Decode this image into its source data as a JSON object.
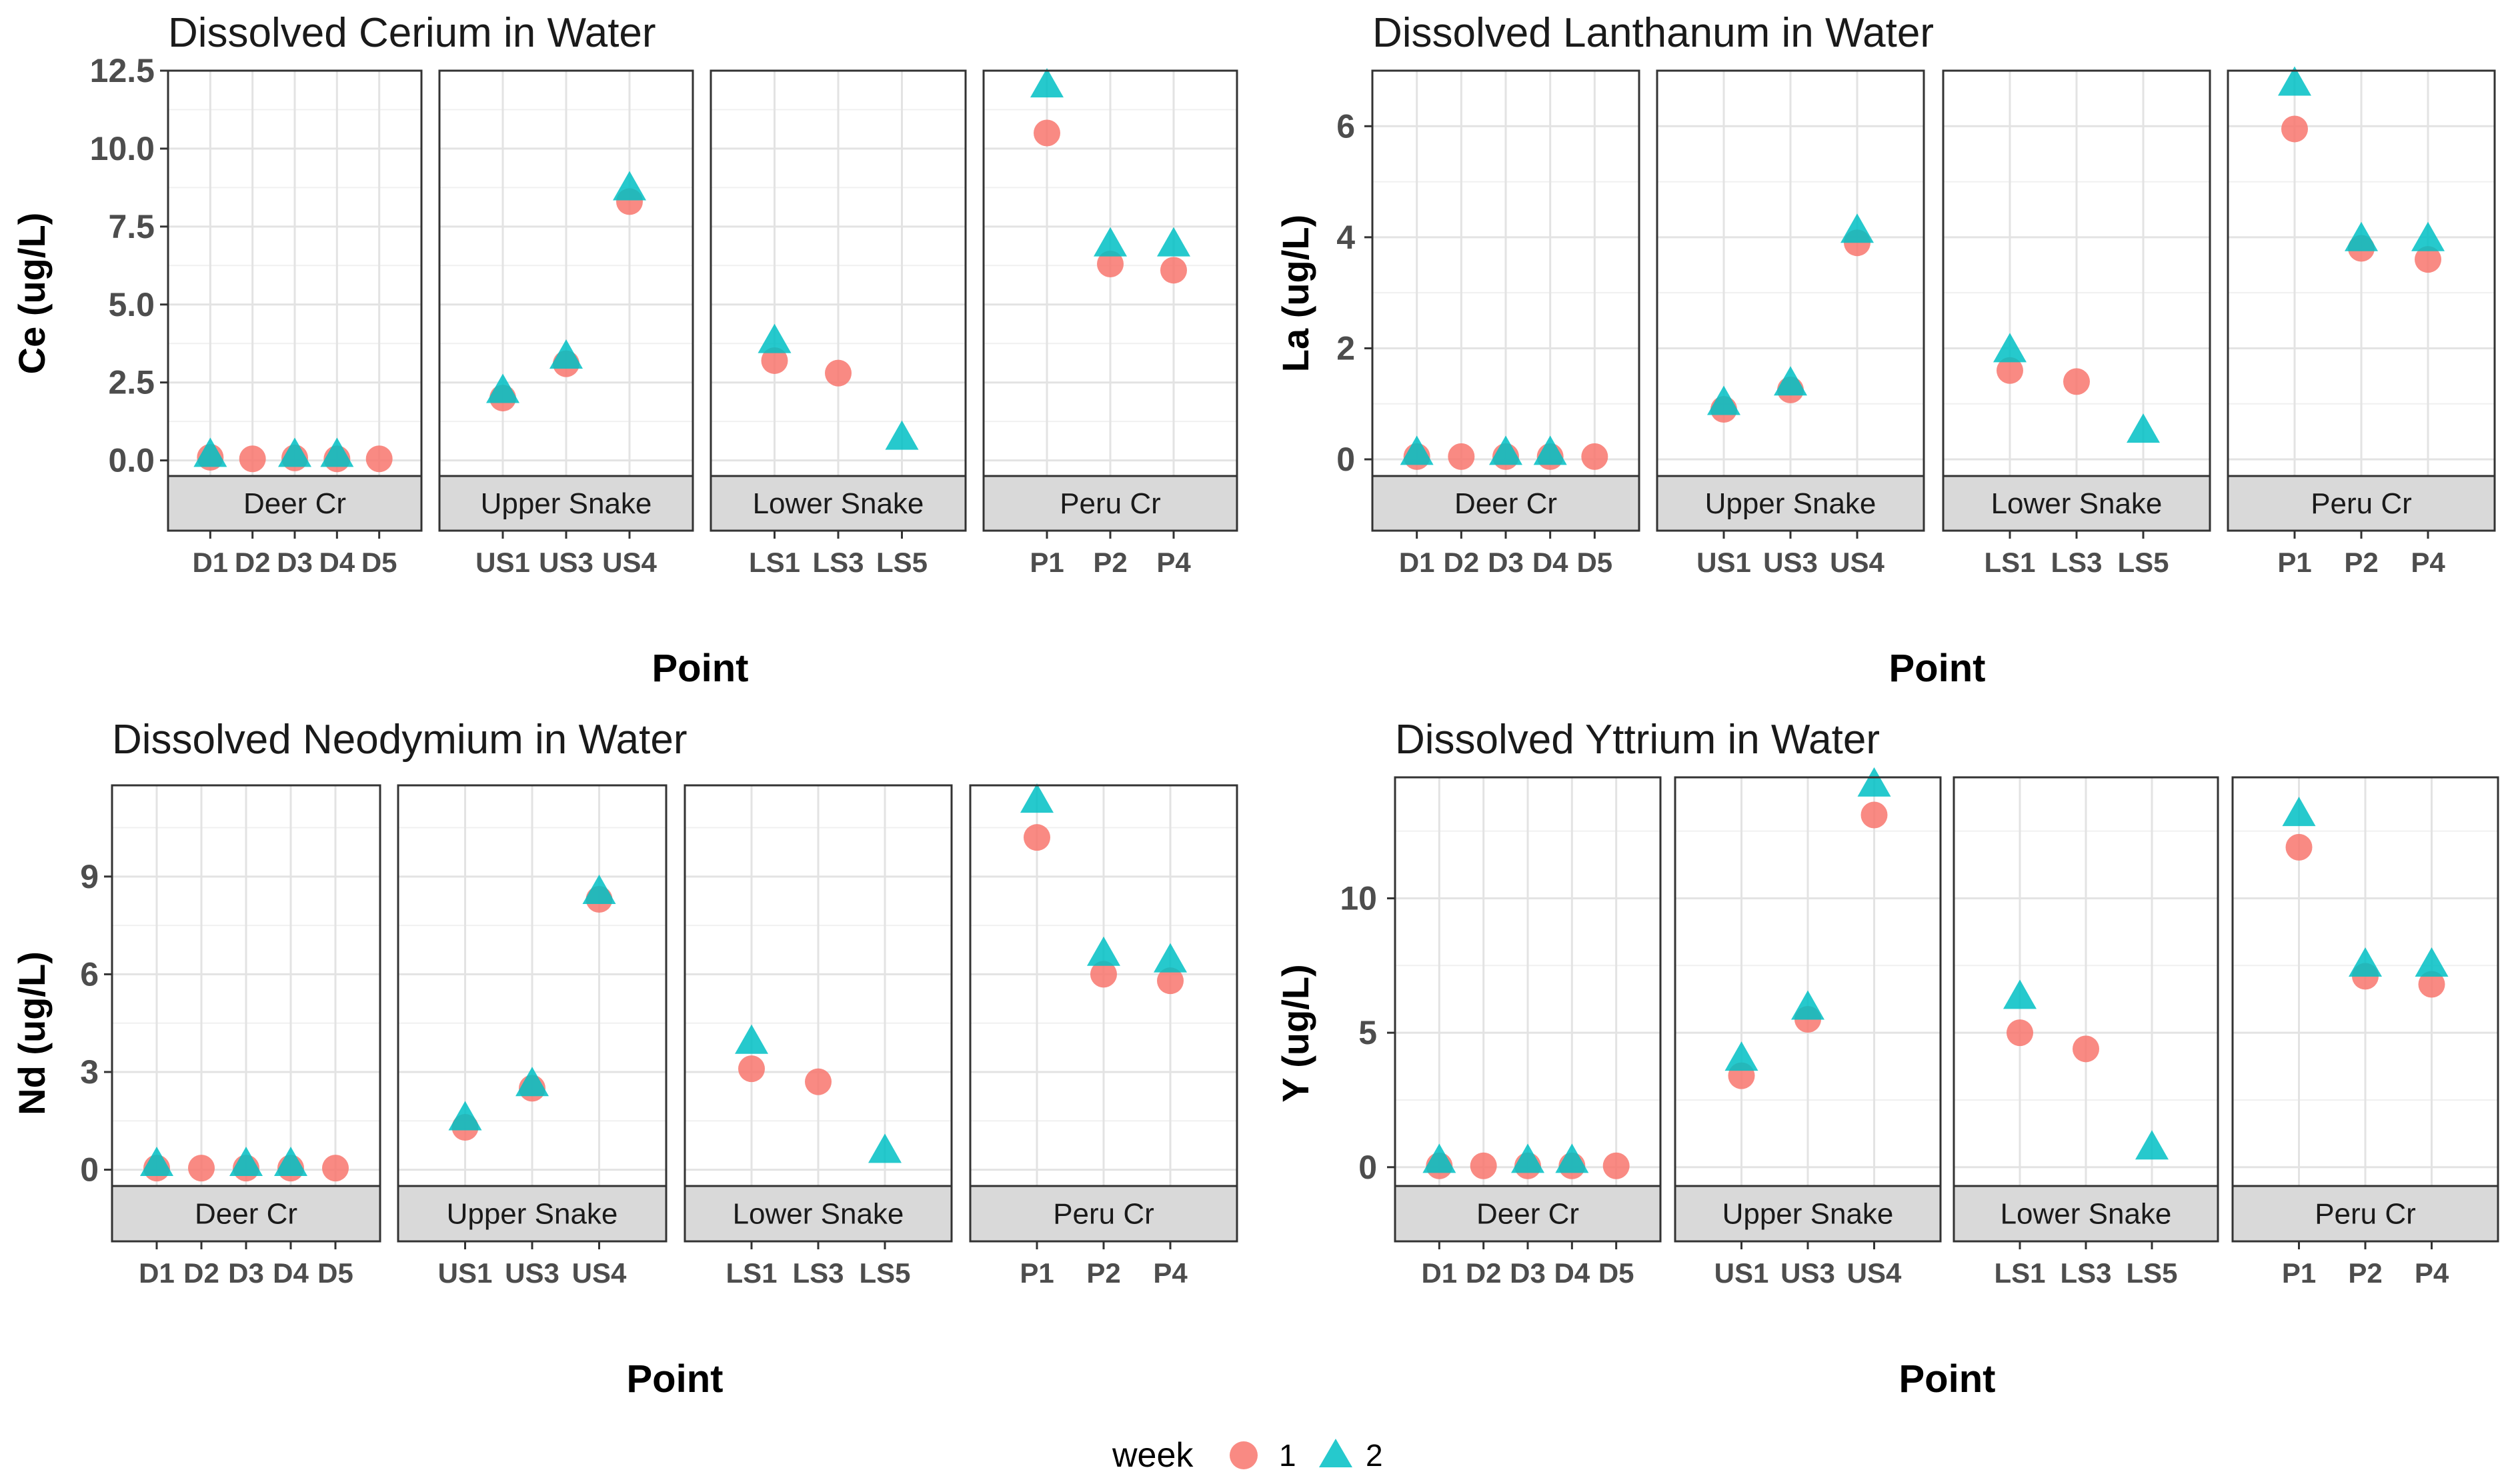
{
  "legend": {
    "title": "week",
    "entries": [
      {
        "label": "1",
        "color": "#F8766D",
        "shape": "circle"
      },
      {
        "label": "2",
        "color": "#00BFC4",
        "shape": "triangle"
      }
    ]
  },
  "chart_data": [
    {
      "type": "scatter",
      "title": "Dissolved Cerium in Water",
      "xlabel": "Point",
      "ylabel": "Ce (ug/L)",
      "ylim": [
        -0.5,
        12.5
      ],
      "yticks": [
        0.0,
        2.5,
        5.0,
        7.5,
        10.0,
        12.5
      ],
      "ytick_labels": [
        "0.0",
        "2.5",
        "5.0",
        "7.5",
        "10.0",
        "12.5"
      ],
      "facets": [
        {
          "name": "Deer Cr",
          "points": [
            "D1",
            "D2",
            "D3",
            "D4",
            "D5"
          ],
          "series": [
            {
              "name": "1",
              "values": [
                0.1,
                0.05,
                0.08,
                0.05,
                0.05
              ]
            },
            {
              "name": "2",
              "values": [
                0.15,
                null,
                0.15,
                0.15,
                null
              ]
            }
          ]
        },
        {
          "name": "Upper Snake",
          "points": [
            "US1",
            "US3",
            "US4"
          ],
          "series": [
            {
              "name": "1",
              "values": [
                2.0,
                3.1,
                8.3
              ]
            },
            {
              "name": "2",
              "values": [
                2.2,
                3.3,
                8.7
              ]
            }
          ]
        },
        {
          "name": "Lower Snake",
          "points": [
            "LS1",
            "LS3",
            "LS5"
          ],
          "series": [
            {
              "name": "1",
              "values": [
                3.2,
                2.8,
                null
              ]
            },
            {
              "name": "2",
              "values": [
                3.8,
                null,
                0.7
              ]
            }
          ]
        },
        {
          "name": "Peru Cr",
          "points": [
            "P1",
            "P2",
            "P4"
          ],
          "series": [
            {
              "name": "1",
              "values": [
                10.5,
                6.3,
                6.1
              ]
            },
            {
              "name": "2",
              "values": [
                12.0,
                6.9,
                6.9
              ]
            }
          ]
        }
      ]
    },
    {
      "type": "scatter",
      "title": "Dissolved Lanthanum in Water",
      "xlabel": "Point",
      "ylabel": "La (ug/L)",
      "ylim": [
        -0.3,
        7.0
      ],
      "yticks": [
        0,
        2,
        4,
        6
      ],
      "ytick_labels": [
        "0",
        "2",
        "4",
        "6"
      ],
      "facets": [
        {
          "name": "Deer Cr",
          "points": [
            "D1",
            "D2",
            "D3",
            "D4",
            "D5"
          ],
          "series": [
            {
              "name": "1",
              "values": [
                0.05,
                0.05,
                0.05,
                0.05,
                0.05
              ]
            },
            {
              "name": "2",
              "values": [
                0.1,
                null,
                0.1,
                0.1,
                null
              ]
            }
          ]
        },
        {
          "name": "Upper Snake",
          "points": [
            "US1",
            "US3",
            "US4"
          ],
          "series": [
            {
              "name": "1",
              "values": [
                0.9,
                1.25,
                3.9
              ]
            },
            {
              "name": "2",
              "values": [
                1.0,
                1.35,
                4.1
              ]
            }
          ]
        },
        {
          "name": "Lower Snake",
          "points": [
            "LS1",
            "LS3",
            "LS5"
          ],
          "series": [
            {
              "name": "1",
              "values": [
                1.6,
                1.4,
                null
              ]
            },
            {
              "name": "2",
              "values": [
                1.95,
                null,
                0.5
              ]
            }
          ]
        },
        {
          "name": "Peru Cr",
          "points": [
            "P1",
            "P2",
            "P4"
          ],
          "series": [
            {
              "name": "1",
              "values": [
                5.95,
                3.8,
                3.6
              ]
            },
            {
              "name": "2",
              "values": [
                6.75,
                3.95,
                3.95
              ]
            }
          ]
        }
      ]
    },
    {
      "type": "scatter",
      "title": "Dissolved Neodymium in Water",
      "xlabel": "Point",
      "ylabel": "Nd (ug/L)",
      "ylim": [
        -0.5,
        11.8
      ],
      "yticks": [
        0,
        3,
        6,
        9
      ],
      "ytick_labels": [
        "0",
        "3",
        "6",
        "9"
      ],
      "facets": [
        {
          "name": "Deer Cr",
          "points": [
            "D1",
            "D2",
            "D3",
            "D4",
            "D5"
          ],
          "series": [
            {
              "name": "1",
              "values": [
                0.05,
                0.05,
                0.05,
                0.05,
                0.05
              ]
            },
            {
              "name": "2",
              "values": [
                0.15,
                null,
                0.15,
                0.15,
                null
              ]
            }
          ]
        },
        {
          "name": "Upper Snake",
          "points": [
            "US1",
            "US3",
            "US4"
          ],
          "series": [
            {
              "name": "1",
              "values": [
                1.3,
                2.5,
                8.3
              ]
            },
            {
              "name": "2",
              "values": [
                1.55,
                2.6,
                8.5
              ]
            }
          ]
        },
        {
          "name": "Lower Snake",
          "points": [
            "LS1",
            "LS3",
            "LS5"
          ],
          "series": [
            {
              "name": "1",
              "values": [
                3.1,
                2.7,
                null
              ]
            },
            {
              "name": "2",
              "values": [
                3.9,
                null,
                0.55
              ]
            }
          ]
        },
        {
          "name": "Peru Cr",
          "points": [
            "P1",
            "P2",
            "P4"
          ],
          "series": [
            {
              "name": "1",
              "values": [
                10.2,
                6.0,
                5.8
              ]
            },
            {
              "name": "2",
              "values": [
                11.3,
                6.6,
                6.4
              ]
            }
          ]
        }
      ]
    },
    {
      "type": "scatter",
      "title": "Dissolved Yttrium in Water",
      "xlabel": "Point",
      "ylabel": "Y (ug/L)",
      "ylim": [
        -0.7,
        14.5
      ],
      "yticks": [
        0,
        5,
        10
      ],
      "ytick_labels": [
        "0",
        "5",
        "10"
      ],
      "facets": [
        {
          "name": "Deer Cr",
          "points": [
            "D1",
            "D2",
            "D3",
            "D4",
            "D5"
          ],
          "series": [
            {
              "name": "1",
              "values": [
                0.05,
                0.05,
                0.05,
                0.05,
                0.05
              ]
            },
            {
              "name": "2",
              "values": [
                0.2,
                null,
                0.2,
                0.2,
                null
              ]
            }
          ]
        },
        {
          "name": "Upper Snake",
          "points": [
            "US1",
            "US3",
            "US4"
          ],
          "series": [
            {
              "name": "1",
              "values": [
                3.4,
                5.5,
                13.1
              ]
            },
            {
              "name": "2",
              "values": [
                4.0,
                5.9,
                14.2
              ]
            }
          ]
        },
        {
          "name": "Lower Snake",
          "points": [
            "LS1",
            "LS3",
            "LS5"
          ],
          "series": [
            {
              "name": "1",
              "values": [
                5.0,
                4.4,
                null
              ]
            },
            {
              "name": "2",
              "values": [
                6.3,
                null,
                0.7
              ]
            }
          ]
        },
        {
          "name": "Peru Cr",
          "points": [
            "P1",
            "P2",
            "P4"
          ],
          "series": [
            {
              "name": "1",
              "values": [
                11.9,
                7.1,
                6.8
              ]
            },
            {
              "name": "2",
              "values": [
                13.1,
                7.5,
                7.5
              ]
            }
          ]
        }
      ]
    }
  ]
}
